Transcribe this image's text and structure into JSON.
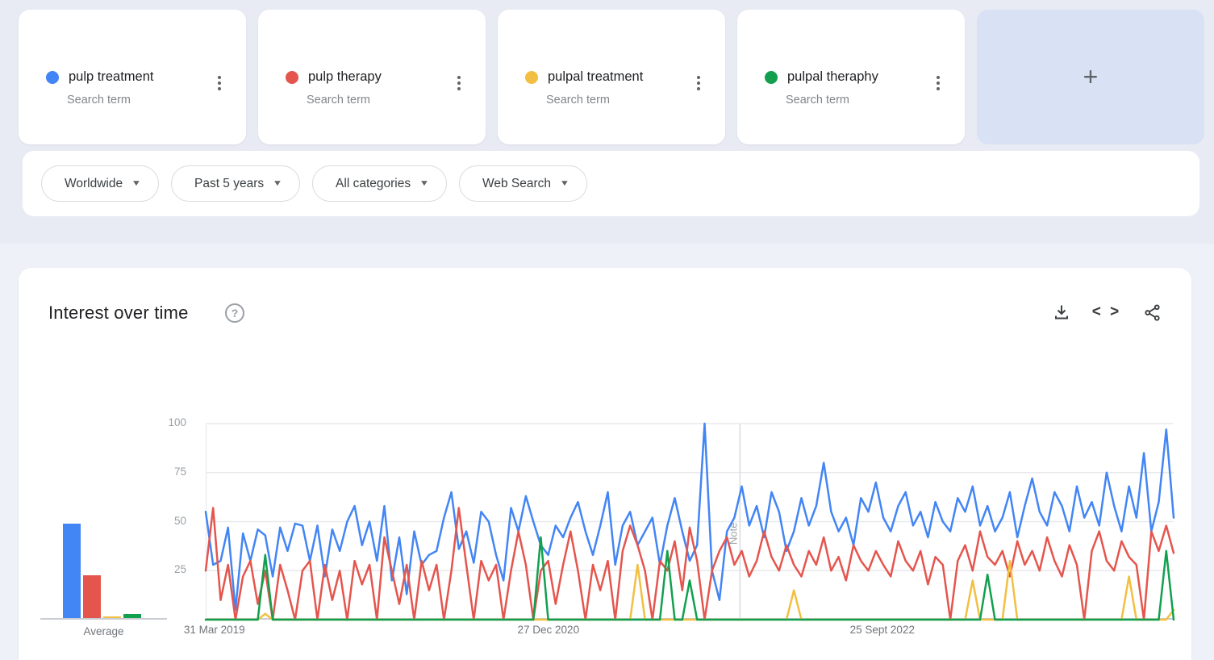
{
  "terms": [
    {
      "label": "pulp treatment",
      "sublabel": "Search term",
      "color": "#4285f4",
      "menu_icon": "kebab-menu-icon"
    },
    {
      "label": "pulp therapy",
      "sublabel": "Search term",
      "color": "#e4554d",
      "menu_icon": "kebab-menu-icon"
    },
    {
      "label": "pulpal treatment",
      "sublabel": "Search term",
      "color": "#f2bf42",
      "menu_icon": "kebab-menu-icon"
    },
    {
      "label": "pulpal theraphy",
      "sublabel": "Search term",
      "color": "#12a04f",
      "menu_icon": "kebab-menu-icon"
    }
  ],
  "add_term": {
    "label": "+",
    "icon": "plus-icon"
  },
  "filters": [
    {
      "label": "Worldwide"
    },
    {
      "label": "Past 5 years"
    },
    {
      "label": "All categories"
    },
    {
      "label": "Web Search"
    }
  ],
  "panel": {
    "title": "Interest over time",
    "help_icon_glyph": "?",
    "embed_glyph": "< >",
    "action_icons": [
      "download-icon",
      "embed-icon",
      "share-icon"
    ]
  },
  "chart_data": {
    "type": "line",
    "title": "Interest over time",
    "ylim": [
      0,
      100
    ],
    "y_ticks": [
      25,
      50,
      75,
      100
    ],
    "grid": true,
    "legend": "none",
    "x_axis_labels": [
      {
        "label": "31 Mar 2019",
        "f": 0.009
      },
      {
        "label": "27 Dec 2020",
        "f": 0.354
      },
      {
        "label": "25 Sept 2022",
        "f": 0.699
      }
    ],
    "note_annotation": {
      "label": "Note",
      "f": 0.552
    },
    "series": [
      {
        "name": "pulp treatment",
        "color": "#4285f4",
        "values": [
          55,
          28,
          30,
          47,
          5,
          44,
          30,
          46,
          43,
          22,
          47,
          35,
          49,
          48,
          30,
          48,
          22,
          46,
          35,
          50,
          58,
          38,
          50,
          30,
          58,
          20,
          42,
          13,
          45,
          28,
          33,
          35,
          52,
          65,
          36,
          45,
          29,
          55,
          50,
          33,
          20,
          57,
          45,
          63,
          50,
          38,
          33,
          48,
          42,
          52,
          60,
          45,
          33,
          48,
          65,
          28,
          48,
          55,
          38,
          45,
          52,
          28,
          48,
          62,
          45,
          30,
          38,
          100,
          25,
          10,
          45,
          52,
          68,
          48,
          58,
          42,
          65,
          55,
          35,
          45,
          62,
          48,
          58,
          80,
          55,
          45,
          52,
          38,
          62,
          55,
          70,
          52,
          45,
          58,
          65,
          48,
          55,
          42,
          60,
          50,
          45,
          62,
          55,
          68,
          48,
          58,
          45,
          52,
          65,
          42,
          58,
          72,
          55,
          48,
          65,
          58,
          45,
          68,
          52,
          60,
          48,
          75,
          58,
          45,
          68,
          52,
          85,
          45,
          60,
          97,
          52
        ]
      },
      {
        "name": "pulp therapy",
        "color": "#e4554d",
        "values": [
          25,
          57,
          10,
          28,
          0,
          22,
          30,
          8,
          25,
          0,
          28,
          15,
          0,
          25,
          30,
          0,
          28,
          10,
          25,
          0,
          30,
          18,
          28,
          0,
          42,
          25,
          8,
          28,
          0,
          30,
          15,
          28,
          0,
          25,
          57,
          28,
          0,
          30,
          20,
          28,
          0,
          25,
          45,
          28,
          0,
          25,
          30,
          8,
          28,
          45,
          25,
          0,
          28,
          15,
          30,
          0,
          35,
          48,
          38,
          25,
          0,
          30,
          25,
          40,
          15,
          47,
          30,
          0,
          25,
          35,
          42,
          28,
          35,
          22,
          30,
          45,
          32,
          25,
          38,
          28,
          22,
          35,
          28,
          42,
          25,
          32,
          20,
          38,
          30,
          25,
          35,
          28,
          22,
          40,
          30,
          25,
          35,
          18,
          32,
          28,
          0,
          30,
          38,
          25,
          45,
          32,
          28,
          35,
          22,
          40,
          28,
          35,
          25,
          42,
          30,
          22,
          38,
          28,
          0,
          35,
          45,
          30,
          25,
          40,
          32,
          28,
          0,
          45,
          35,
          48,
          34
        ]
      },
      {
        "name": "pulpal treatment",
        "color": "#f2bf42",
        "values": [
          0,
          0,
          0,
          0,
          0,
          0,
          0,
          0,
          3,
          0,
          0,
          0,
          0,
          0,
          0,
          0,
          0,
          0,
          0,
          0,
          0,
          0,
          0,
          0,
          0,
          0,
          0,
          0,
          0,
          0,
          0,
          0,
          0,
          0,
          0,
          0,
          0,
          0,
          0,
          0,
          0,
          0,
          0,
          0,
          0,
          0,
          0,
          0,
          0,
          0,
          0,
          0,
          0,
          0,
          0,
          0,
          0,
          0,
          28,
          0,
          0,
          0,
          0,
          0,
          0,
          0,
          0,
          0,
          0,
          0,
          0,
          0,
          0,
          0,
          0,
          0,
          0,
          0,
          0,
          15,
          0,
          0,
          0,
          0,
          0,
          0,
          0,
          0,
          0,
          0,
          0,
          0,
          0,
          0,
          0,
          0,
          0,
          0,
          0,
          0,
          0,
          0,
          0,
          20,
          0,
          0,
          0,
          0,
          30,
          0,
          0,
          0,
          0,
          0,
          0,
          0,
          0,
          0,
          0,
          0,
          0,
          0,
          0,
          0,
          22,
          0,
          0,
          0,
          0,
          0,
          5
        ]
      },
      {
        "name": "pulpal theraphy",
        "color": "#12a04f",
        "values": [
          0,
          0,
          0,
          0,
          0,
          0,
          0,
          0,
          33,
          0,
          0,
          0,
          0,
          0,
          0,
          0,
          0,
          0,
          0,
          0,
          0,
          0,
          0,
          0,
          0,
          0,
          0,
          0,
          0,
          0,
          0,
          0,
          0,
          0,
          0,
          0,
          0,
          0,
          0,
          0,
          0,
          0,
          0,
          0,
          0,
          42,
          0,
          0,
          0,
          0,
          0,
          0,
          0,
          0,
          0,
          0,
          0,
          0,
          0,
          0,
          0,
          0,
          35,
          0,
          0,
          20,
          0,
          0,
          0,
          0,
          0,
          0,
          0,
          0,
          0,
          0,
          0,
          0,
          0,
          0,
          0,
          0,
          0,
          0,
          0,
          0,
          0,
          0,
          0,
          0,
          0,
          0,
          0,
          0,
          0,
          0,
          0,
          0,
          0,
          0,
          0,
          0,
          0,
          0,
          0,
          23,
          0,
          0,
          0,
          0,
          0,
          0,
          0,
          0,
          0,
          0,
          0,
          0,
          0,
          0,
          0,
          0,
          0,
          0,
          0,
          0,
          0,
          0,
          0,
          35,
          0
        ]
      }
    ],
    "averages": {
      "label": "Average",
      "values": [
        48,
        22,
        1,
        2
      ]
    }
  }
}
